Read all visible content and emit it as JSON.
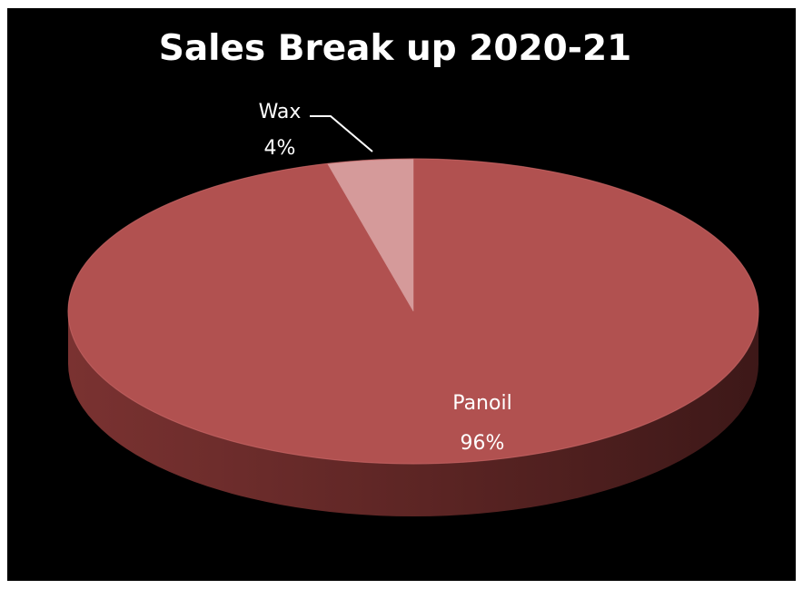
{
  "chart_data": {
    "type": "pie",
    "title": "Sales Break up 2020-21",
    "three_d": true,
    "background": "#000000",
    "slices": [
      {
        "label": "Panoil",
        "value": 96,
        "percent_label": "96%",
        "color": "#b15150"
      },
      {
        "label": "Wax",
        "value": 4,
        "percent_label": "4%",
        "color": "#d59a9a"
      }
    ],
    "legend": "none",
    "data_labels": "category and percent",
    "title_color": "#ffffff",
    "label_color": "#ffffff"
  }
}
